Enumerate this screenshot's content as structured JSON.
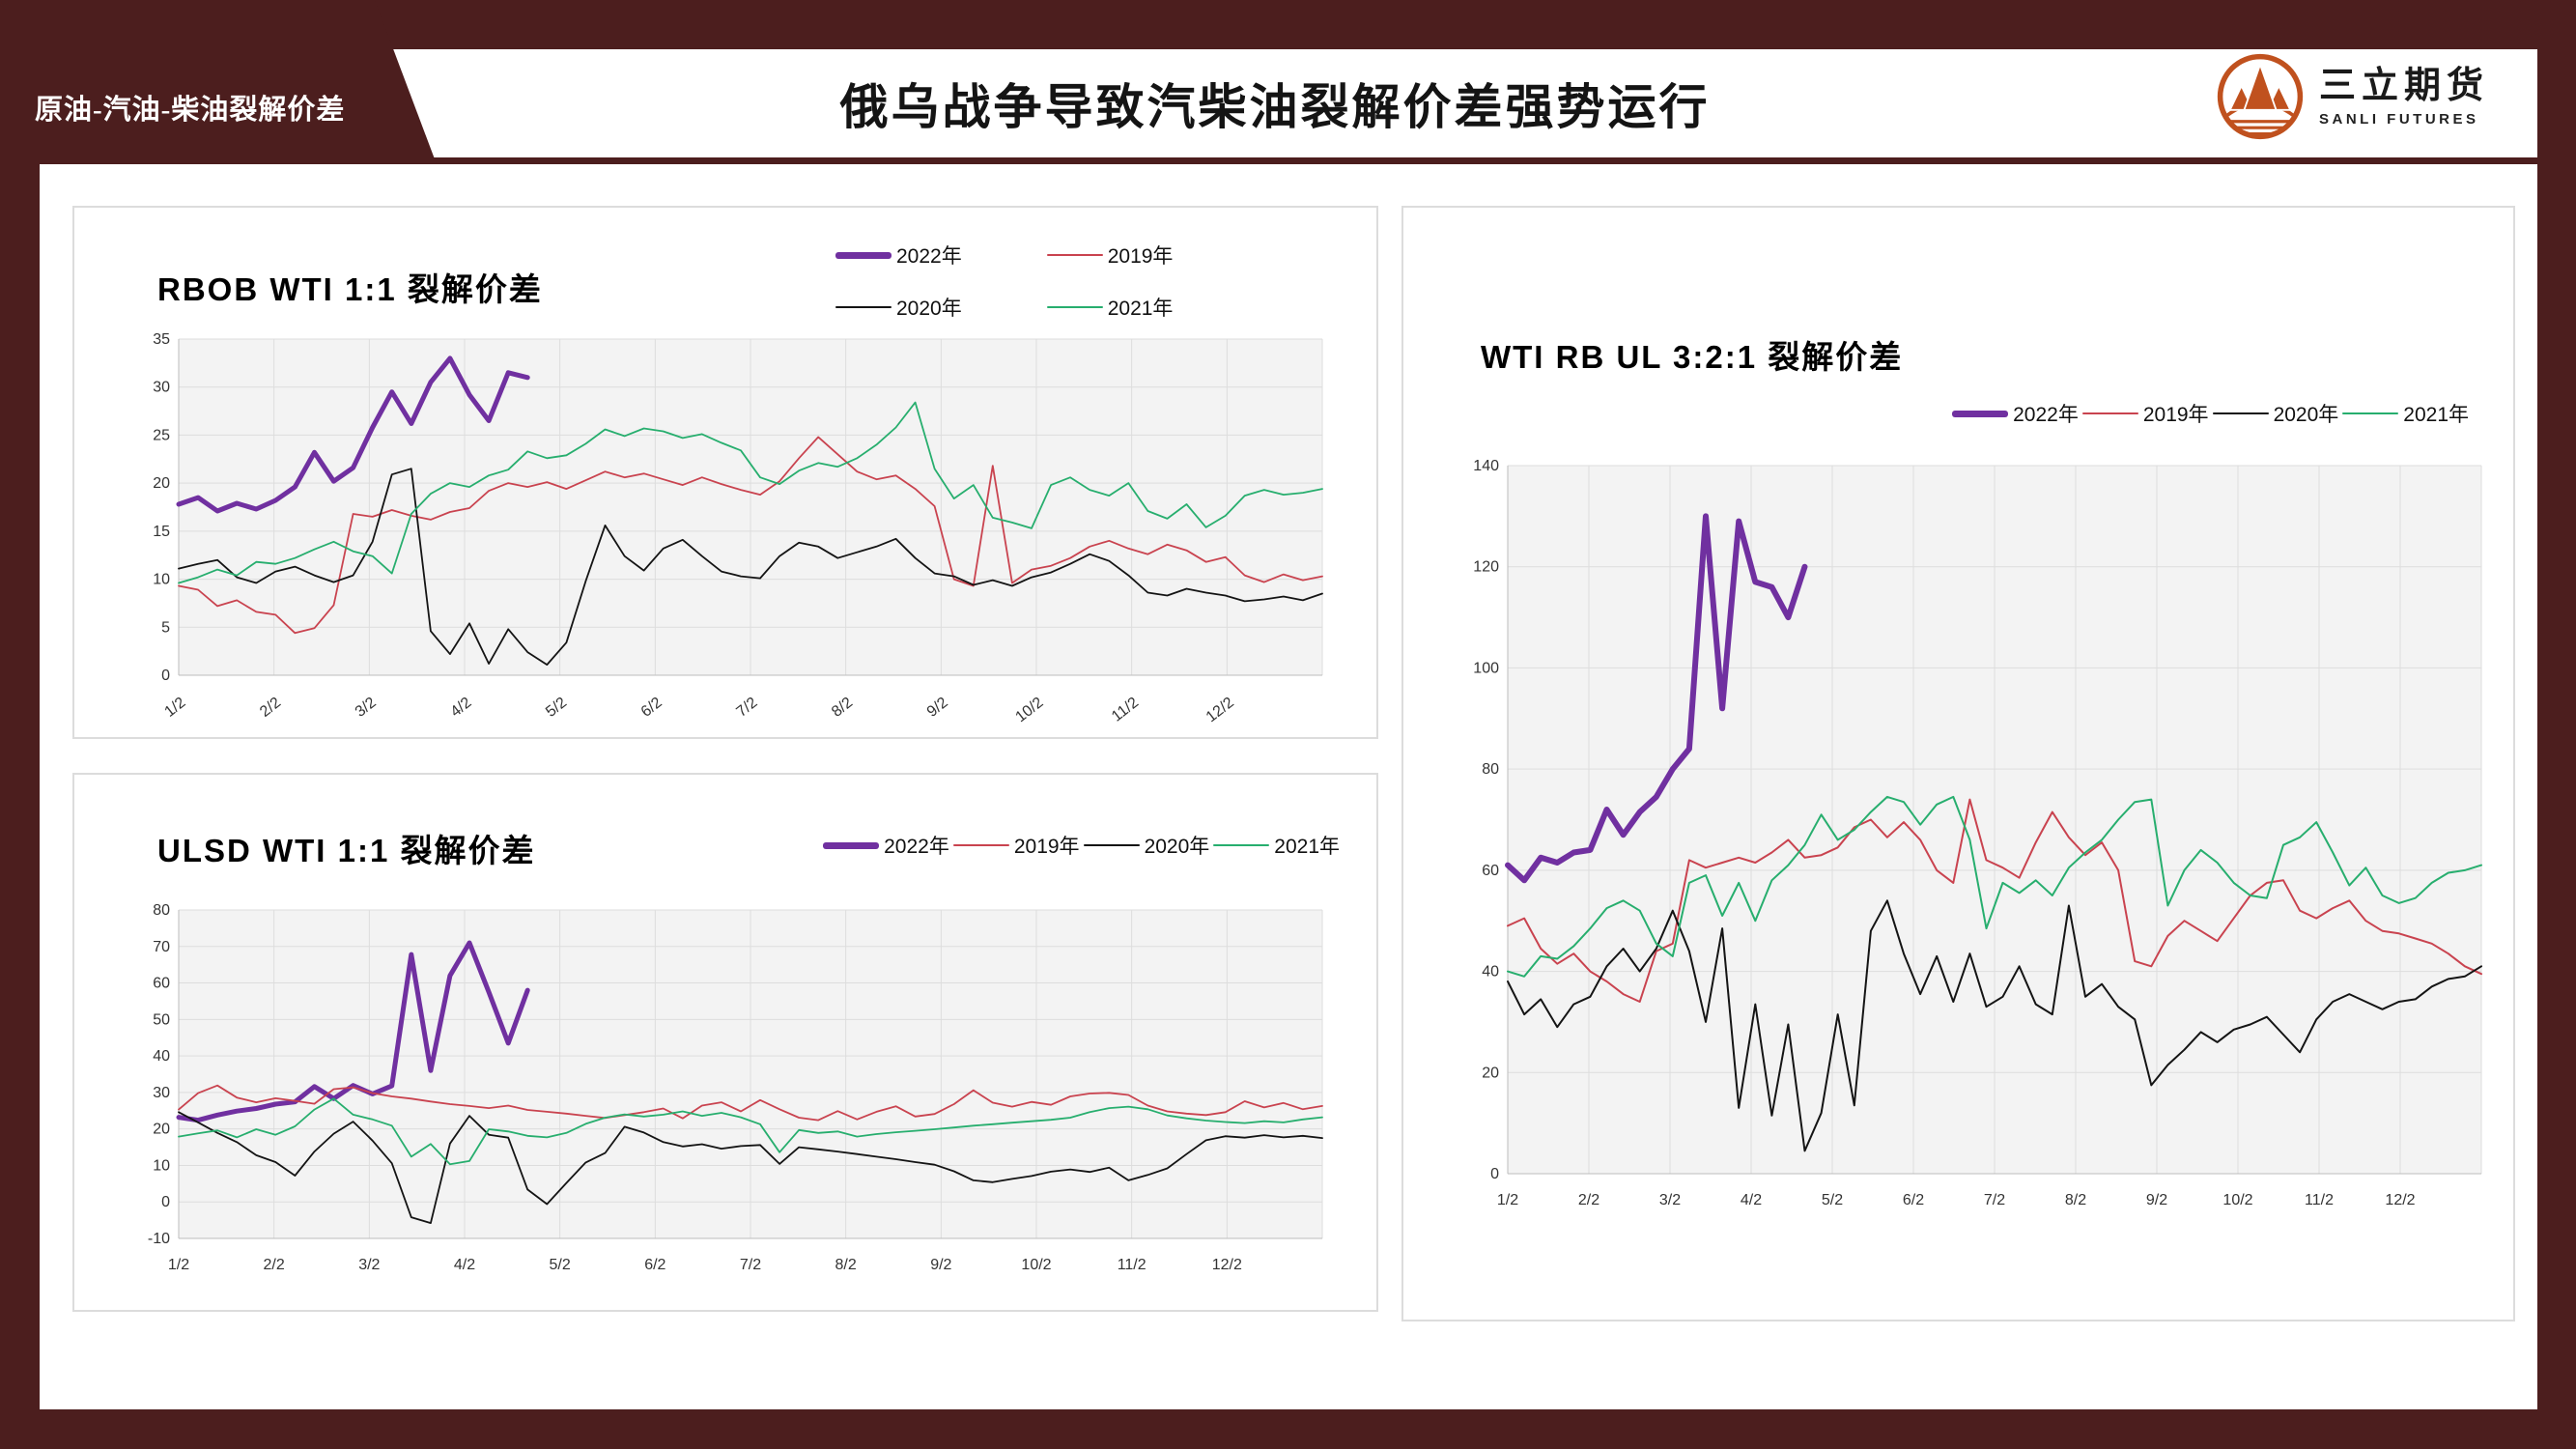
{
  "header": {
    "tag": "原油-汽油-柴油裂解价差",
    "title": "俄乌战争导致汽柴油裂解价差强势运行",
    "logo": {
      "name": "三立期货",
      "subtitle": "SANLI FUTURES"
    }
  },
  "theme": {
    "maroon": "#4C1E1E",
    "panel_border": "#DCDCDC",
    "plot_bg": "#F3F3F3",
    "grid": "#DDDDDD",
    "axis": "#BDBDBD",
    "logo_color": "#C0511E",
    "series_2022": "#7030A0",
    "series_2019": "#C9434F",
    "series_2020": "#141414",
    "series_2021": "#27AE6E"
  },
  "chart_data": [
    {
      "type": "line",
      "title": "RBOB WTI 1:1 裂解价差",
      "ylim": [
        0,
        35
      ],
      "ytick_step": 5,
      "x_labels": [
        "1/2",
        "2/2",
        "3/2",
        "4/2",
        "5/2",
        "6/2",
        "7/2",
        "8/2",
        "9/2",
        "10/2",
        "11/2",
        "12/2"
      ],
      "x_label_rotate": true,
      "legend_layout": "grid",
      "n_points": 60,
      "series": [
        {
          "name": "2022年",
          "color": "#7030A0",
          "width": 5,
          "values": [
            17.8,
            18.5,
            17.1,
            17.9,
            17.3,
            18.2,
            19.6,
            23.2,
            20.2,
            21.6,
            25.8,
            29.5,
            26.2,
            30.5,
            33.0,
            29.2,
            26.5,
            31.5,
            31.0
          ]
        },
        {
          "name": "2019年",
          "color": "#C9434F",
          "width": 1.8,
          "values": [
            9.3,
            8.9,
            7.2,
            7.8,
            6.6,
            6.3,
            4.4,
            4.9,
            7.3,
            16.8,
            16.5,
            17.2,
            16.6,
            16.2,
            17.0,
            17.4,
            19.2,
            20.0,
            19.6,
            20.1,
            19.4,
            20.3,
            21.2,
            20.6,
            21.0,
            20.4,
            19.8,
            20.6,
            19.9,
            19.3,
            18.8,
            20.2,
            22.6,
            24.8,
            23.0,
            21.2,
            20.4,
            20.8,
            19.4,
            17.6,
            10.0,
            9.3,
            21.8,
            9.6,
            11.0,
            11.4,
            12.2,
            13.4,
            14.0,
            13.2,
            12.6,
            13.6,
            13.0,
            11.8,
            12.3,
            10.4,
            9.7,
            10.5,
            9.9,
            10.3
          ]
        },
        {
          "name": "2020年",
          "color": "#141414",
          "width": 1.8,
          "values": [
            11.1,
            11.6,
            12.0,
            10.2,
            9.6,
            10.8,
            11.3,
            10.4,
            9.7,
            10.4,
            13.9,
            20.9,
            21.5,
            4.6,
            2.2,
            5.4,
            1.2,
            4.8,
            2.4,
            1.1,
            3.4,
            9.8,
            15.6,
            12.4,
            10.9,
            13.2,
            14.1,
            12.4,
            10.8,
            10.3,
            10.1,
            12.4,
            13.8,
            13.4,
            12.2,
            12.8,
            13.4,
            14.2,
            12.2,
            10.6,
            10.3,
            9.4,
            9.9,
            9.3,
            10.2,
            10.7,
            11.6,
            12.6,
            11.9,
            10.4,
            8.6,
            8.3,
            9.0,
            8.6,
            8.3,
            7.7,
            7.9,
            8.2,
            7.8,
            8.5
          ]
        },
        {
          "name": "2021年",
          "color": "#27AE6E",
          "width": 1.8,
          "values": [
            9.6,
            10.2,
            11.0,
            10.4,
            11.8,
            11.6,
            12.2,
            13.1,
            13.9,
            12.9,
            12.4,
            10.6,
            16.8,
            18.9,
            20.0,
            19.6,
            20.8,
            21.4,
            23.3,
            22.6,
            22.9,
            24.1,
            25.6,
            24.9,
            25.7,
            25.4,
            24.7,
            25.1,
            24.2,
            23.4,
            20.6,
            19.9,
            21.3,
            22.1,
            21.7,
            22.6,
            24.0,
            25.8,
            28.4,
            21.5,
            18.4,
            19.8,
            16.4,
            15.9,
            15.3,
            19.8,
            20.6,
            19.3,
            18.7,
            20.0,
            17.1,
            16.3,
            17.8,
            15.4,
            16.6,
            18.7,
            19.3,
            18.8,
            19.0,
            19.4
          ]
        }
      ]
    },
    {
      "type": "line",
      "title": "ULSD WTI 1:1 裂解价差",
      "ylim": [
        -10,
        80
      ],
      "ytick_step": 10,
      "x_labels": [
        "1/2",
        "2/2",
        "3/2",
        "4/2",
        "5/2",
        "6/2",
        "7/2",
        "8/2",
        "9/2",
        "10/2",
        "11/2",
        "12/2"
      ],
      "x_label_rotate": false,
      "legend_layout": "row",
      "n_points": 60,
      "series": [
        {
          "name": "2022年",
          "color": "#7030A0",
          "width": 5,
          "values": [
            23.2,
            22.4,
            23.8,
            24.9,
            25.6,
            26.8,
            27.4,
            31.6,
            28.3,
            31.9,
            29.6,
            31.8,
            67.8,
            36.0,
            62.0,
            71.0,
            57.5,
            43.5,
            58.0
          ]
        },
        {
          "name": "2019年",
          "color": "#C9434F",
          "width": 1.8,
          "values": [
            25.3,
            29.8,
            31.9,
            28.6,
            27.3,
            28.4,
            27.7,
            26.9,
            30.9,
            31.4,
            29.8,
            28.9,
            28.3,
            27.5,
            26.8,
            26.3,
            25.7,
            26.4,
            25.2,
            24.7,
            24.2,
            23.6,
            23.0,
            23.8,
            24.6,
            25.6,
            22.9,
            26.4,
            27.3,
            24.8,
            27.9,
            25.4,
            23.1,
            22.4,
            24.9,
            22.6,
            24.7,
            26.2,
            23.4,
            24.1,
            26.8,
            30.6,
            27.2,
            26.1,
            27.4,
            26.6,
            28.9,
            29.7,
            29.9,
            29.3,
            26.4,
            24.8,
            24.2,
            23.8,
            24.6,
            27.6,
            25.9,
            27.1,
            25.4,
            26.3
          ]
        },
        {
          "name": "2020年",
          "color": "#141414",
          "width": 1.8,
          "values": [
            24.6,
            21.8,
            18.9,
            16.4,
            12.8,
            10.9,
            7.2,
            13.8,
            18.7,
            22.0,
            16.8,
            10.6,
            -4.2,
            -5.8,
            16.0,
            23.6,
            18.4,
            17.6,
            3.4,
            -0.6,
            5.2,
            10.8,
            13.4,
            20.6,
            19.0,
            16.4,
            15.2,
            15.8,
            14.6,
            15.3,
            15.6,
            10.4,
            15.0,
            14.4,
            13.8,
            13.1,
            12.4,
            11.7,
            10.9,
            10.2,
            8.4,
            5.9,
            5.4,
            6.3,
            7.1,
            8.3,
            8.9,
            8.2,
            9.4,
            5.9,
            7.4,
            9.2,
            13.1,
            16.9,
            18.0,
            17.6,
            18.3,
            17.7,
            18.1,
            17.5
          ]
        },
        {
          "name": "2021年",
          "color": "#27AE6E",
          "width": 1.8,
          "values": [
            17.9,
            18.8,
            19.6,
            17.7,
            19.9,
            18.4,
            20.7,
            25.3,
            28.3,
            23.9,
            22.6,
            20.9,
            12.4,
            15.9,
            10.3,
            11.2,
            19.9,
            19.3,
            18.1,
            17.7,
            18.9,
            21.4,
            23.1,
            24.0,
            23.4,
            23.9,
            24.8,
            23.6,
            24.4,
            23.2,
            21.3,
            13.6,
            19.7,
            18.9,
            19.3,
            17.9,
            18.6,
            19.1,
            19.5,
            19.9,
            20.4,
            20.9,
            21.3,
            21.7,
            22.1,
            22.5,
            23.1,
            24.6,
            25.7,
            26.1,
            25.4,
            23.7,
            22.9,
            22.3,
            21.9,
            21.6,
            22.1,
            21.8,
            22.6,
            23.2
          ]
        }
      ]
    },
    {
      "type": "line",
      "title": "WTI RB UL 3:2:1 裂解价差",
      "ylim": [
        0,
        140
      ],
      "ytick_step": 20,
      "x_labels": [
        "1/2",
        "2/2",
        "3/2",
        "4/2",
        "5/2",
        "6/2",
        "7/2",
        "8/2",
        "9/2",
        "10/2",
        "11/2",
        "12/2"
      ],
      "x_label_rotate": false,
      "legend_layout": "row",
      "n_points": 60,
      "series": [
        {
          "name": "2022年",
          "color": "#7030A0",
          "width": 6,
          "values": [
            61,
            58,
            62.5,
            61.5,
            63.5,
            64,
            72,
            67,
            71.5,
            74.5,
            80,
            84,
            130,
            92,
            129,
            117,
            116,
            110,
            120
          ]
        },
        {
          "name": "2019年",
          "color": "#C9434F",
          "width": 2,
          "values": [
            49,
            50.5,
            44.5,
            41.5,
            43.5,
            40,
            38,
            35.5,
            34,
            44,
            45.5,
            62,
            60.5,
            61.5,
            62.5,
            61.5,
            63.5,
            66,
            62.5,
            63,
            64.5,
            68.5,
            70,
            66.5,
            69.5,
            66,
            60,
            57.5,
            74,
            62,
            60.5,
            58.5,
            65.5,
            71.5,
            66.5,
            63,
            65.5,
            60,
            42,
            41,
            47,
            50,
            48,
            46,
            50.5,
            55,
            57.5,
            58,
            52,
            50.5,
            52.5,
            54,
            50,
            48,
            47.5,
            46.5,
            45.5,
            43.5,
            41,
            39.5
          ]
        },
        {
          "name": "2020年",
          "color": "#141414",
          "width": 2,
          "values": [
            38,
            31.5,
            34.5,
            29,
            33.5,
            35,
            41,
            44.5,
            40,
            44.5,
            52,
            44,
            30,
            48.5,
            13,
            33.5,
            11.5,
            29.5,
            4.5,
            12,
            31.5,
            13.5,
            48,
            54,
            43.5,
            35.5,
            43,
            34,
            43.5,
            33,
            35,
            41,
            33.5,
            31.5,
            53,
            35,
            37.5,
            33,
            30.5,
            17.5,
            21.5,
            24.5,
            28,
            26,
            28.5,
            29.5,
            31,
            27.5,
            24,
            30.5,
            34,
            35.5,
            34,
            32.5,
            34,
            34.5,
            37,
            38.5,
            39,
            41
          ]
        },
        {
          "name": "2021年",
          "color": "#27AE6E",
          "width": 2,
          "values": [
            40,
            39,
            43,
            42.5,
            45,
            48.5,
            52.5,
            54,
            52,
            45.5,
            43,
            57.5,
            59,
            51,
            57.5,
            50,
            58,
            61,
            65,
            71,
            66,
            68,
            71.5,
            74.5,
            73.5,
            69,
            73,
            74.5,
            66,
            48.5,
            57.5,
            55.5,
            58,
            55,
            60.5,
            63.5,
            66,
            70,
            73.5,
            74,
            53,
            60,
            64,
            61.5,
            57.5,
            55,
            54.5,
            65,
            66.5,
            69.5,
            63.5,
            57,
            60.5,
            55,
            53.5,
            54.5,
            57.5,
            59.5,
            60,
            61
          ]
        }
      ]
    }
  ]
}
